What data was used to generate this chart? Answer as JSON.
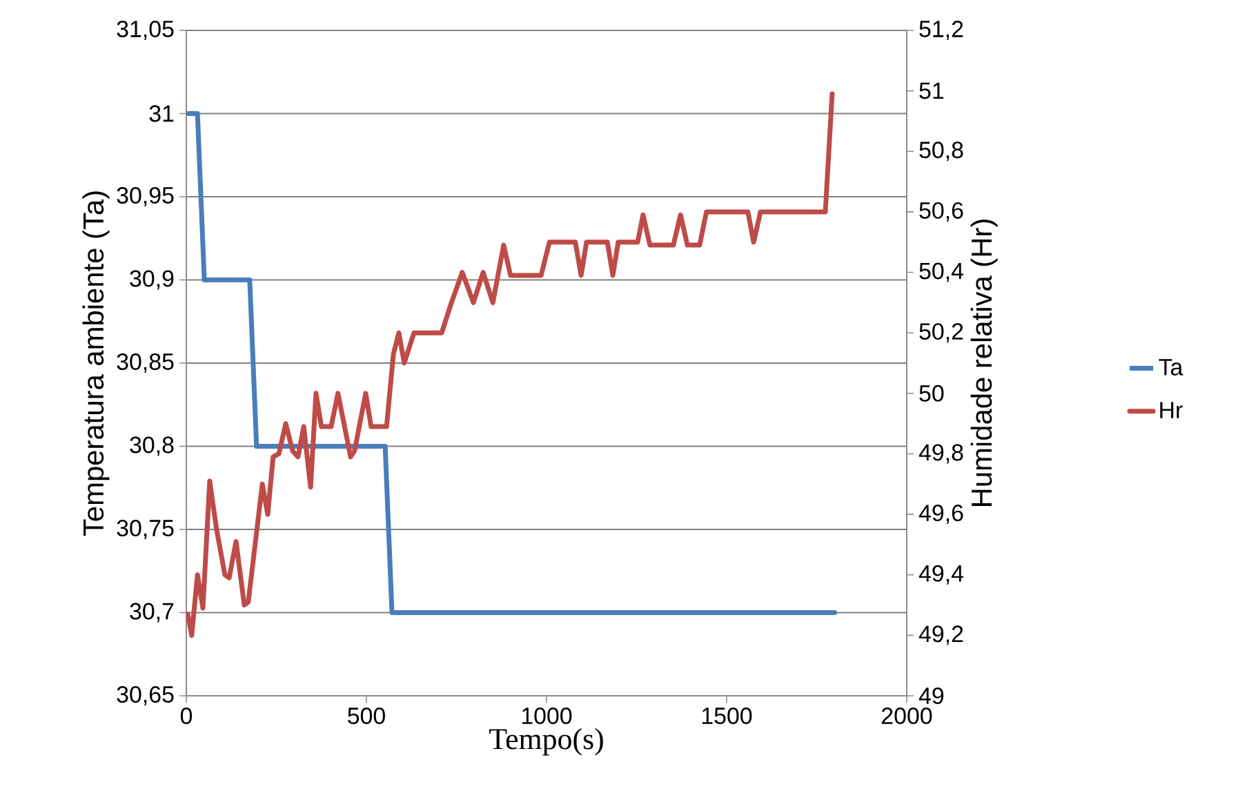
{
  "chart_data": {
    "type": "line",
    "xlabel": "Tempo(s)",
    "ylabel": "Temperatura ambiente (Ta)",
    "y2label": "Humidade relativa (Hr)",
    "xlim": [
      0,
      2000
    ],
    "xticks": [
      0,
      500,
      1000,
      1500,
      2000
    ],
    "ylim": [
      30.65,
      31.05
    ],
    "yticks": [
      {
        "value": 30.65,
        "label": "30,65"
      },
      {
        "value": 30.7,
        "label": "30,7"
      },
      {
        "value": 30.75,
        "label": "30,75"
      },
      {
        "value": 30.8,
        "label": "30,8"
      },
      {
        "value": 30.85,
        "label": "30,85"
      },
      {
        "value": 30.9,
        "label": "30,9"
      },
      {
        "value": 30.95,
        "label": "30,95"
      },
      {
        "value": 31,
        "label": "31"
      },
      {
        "value": 31.05,
        "label": "31,05"
      }
    ],
    "y2lim": [
      49,
      51.2
    ],
    "y2ticks": [
      49,
      {
        "value": 49.2,
        "label": "49,2"
      },
      {
        "value": 49.4,
        "label": "49,4"
      },
      {
        "value": 49.6,
        "label": "49,6"
      },
      {
        "value": 49.8,
        "label": "49,8"
      },
      50,
      {
        "value": 50.2,
        "label": "50,2"
      },
      {
        "value": 50.4,
        "label": "50,4"
      },
      {
        "value": 50.6,
        "label": "50,6"
      },
      {
        "value": 50.8,
        "label": "50,8"
      },
      51,
      {
        "value": 51.2,
        "label": "51,2"
      }
    ],
    "grid": "y",
    "legend": "right",
    "marker": "none",
    "line_style": "solid",
    "series": [
      {
        "name": "Ta",
        "color": "#4a7ebb",
        "x": [
          5,
          31,
          50,
          176,
          195,
          552,
          571,
          1800
        ],
        "values": [
          31,
          31,
          30.9,
          30.9,
          30.8,
          30.8,
          30.7,
          30.7
        ]
      },
      {
        "name": "Hr",
        "color": "#be4b48",
        "axis": "y2",
        "x": [
          4,
          15,
          31,
          46,
          65,
          84,
          107,
          119,
          138,
          161,
          172,
          211,
          226,
          241,
          257,
          276,
          295,
          310,
          326,
          345,
          360,
          375,
          402,
          421,
          456,
          467,
          498,
          513,
          556,
          575,
          590,
          605,
          632,
          709,
          736,
          766,
          797,
          824,
          851,
          881,
          900,
          985,
          1008,
          1080,
          1096,
          1111,
          1169,
          1184,
          1199,
          1253,
          1268,
          1287,
          1352,
          1372,
          1391,
          1425,
          1444,
          1559,
          1575,
          1594,
          1774,
          1793
        ],
        "values": [
          49.27,
          49.2,
          49.4,
          49.29,
          49.71,
          49.55,
          49.4,
          49.39,
          49.51,
          49.3,
          49.31,
          49.7,
          49.6,
          49.79,
          49.8,
          49.9,
          49.81,
          49.79,
          49.89,
          49.69,
          50,
          49.89,
          49.89,
          50,
          49.79,
          49.81,
          50,
          49.89,
          49.89,
          50.13,
          50.2,
          50.1,
          50.2,
          50.2,
          50.3,
          50.4,
          50.3,
          50.4,
          50.3,
          50.49,
          50.39,
          50.39,
          50.5,
          50.5,
          50.39,
          50.5,
          50.5,
          50.39,
          50.5,
          50.5,
          50.59,
          50.49,
          50.49,
          50.59,
          50.49,
          50.49,
          50.6,
          50.6,
          50.5,
          50.6,
          50.6,
          50.99
        ]
      }
    ]
  }
}
